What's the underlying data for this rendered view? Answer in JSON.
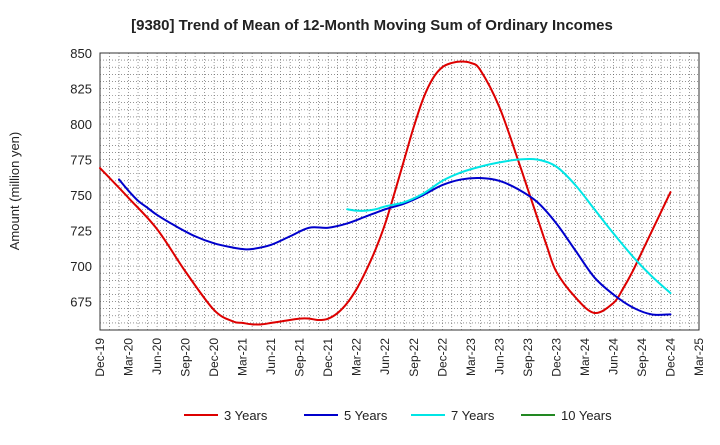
{
  "chart_data": {
    "type": "line",
    "title": "[9380]  Trend of Mean of 12-Month Moving Sum of Ordinary Incomes",
    "xlabel": "",
    "ylabel": "Amount (million yen)",
    "ylim": [
      655,
      850
    ],
    "yticks": [
      675,
      700,
      725,
      750,
      775,
      800,
      825,
      850
    ],
    "xticks": [
      "Dec-19",
      "Mar-20",
      "Jun-20",
      "Sep-20",
      "Dec-20",
      "Mar-21",
      "Jun-21",
      "Sep-21",
      "Dec-21",
      "Mar-22",
      "Jun-22",
      "Sep-22",
      "Dec-22",
      "Mar-23",
      "Jun-23",
      "Sep-23",
      "Dec-23",
      "Mar-24",
      "Jun-24",
      "Sep-24",
      "Dec-24",
      "Mar-25"
    ],
    "x_range_months": [
      0,
      63
    ],
    "grid": true,
    "legend_position": "bottom",
    "series": [
      {
        "name": "3 Years",
        "color": "#dd0000",
        "x_months": [
          0,
          3,
          6,
          9,
          12,
          14,
          15,
          16,
          17,
          18,
          19,
          21,
          22,
          23,
          24,
          25,
          26,
          27,
          28,
          29,
          30,
          31,
          32,
          33,
          34,
          35,
          36,
          37,
          38,
          39,
          40,
          42,
          44,
          45,
          46,
          47,
          48,
          50,
          52,
          54,
          55,
          56,
          57,
          58,
          59,
          60
        ],
        "values": [
          769,
          748,
          726,
          696,
          669,
          661,
          660,
          659,
          659,
          660,
          661,
          663,
          663,
          662,
          663,
          667,
          674,
          684,
          697,
          712,
          730,
          752,
          775,
          798,
          818,
          832,
          840,
          843,
          844,
          843,
          838,
          812,
          774,
          754,
          734,
          714,
          696,
          678,
          667,
          674,
          684,
          696,
          710,
          724,
          738,
          752
        ]
      },
      {
        "name": "5 Years",
        "color": "#0000cc",
        "x_months": [
          2,
          3,
          4,
          5,
          6,
          8,
          10,
          12,
          14,
          15,
          16,
          18,
          20,
          22,
          24,
          26,
          28,
          30,
          32,
          34,
          36,
          38,
          40,
          42,
          44,
          46,
          48,
          50,
          52,
          54,
          56,
          58,
          60
        ],
        "values": [
          761,
          753,
          746,
          741,
          736,
          728,
          721,
          716,
          713,
          712,
          712,
          715,
          721,
          727,
          727,
          730,
          735,
          740,
          744,
          750,
          757,
          761,
          762,
          760,
          754,
          745,
          730,
          711,
          692,
          680,
          671,
          666,
          666
        ]
      },
      {
        "name": "7 Years",
        "color": "#00e5e5",
        "x_months": [
          26,
          27,
          28,
          29,
          30,
          32,
          34,
          36,
          38,
          40,
          42,
          44,
          46,
          48,
          50,
          52,
          54,
          56,
          58,
          60
        ],
        "values": [
          740,
          739,
          739,
          740,
          742,
          745,
          751,
          760,
          766,
          770,
          773,
          775,
          775,
          770,
          757,
          740,
          723,
          707,
          693,
          681
        ]
      },
      {
        "name": "10 Years",
        "color": "#228822",
        "x_months": [],
        "values": []
      }
    ]
  }
}
